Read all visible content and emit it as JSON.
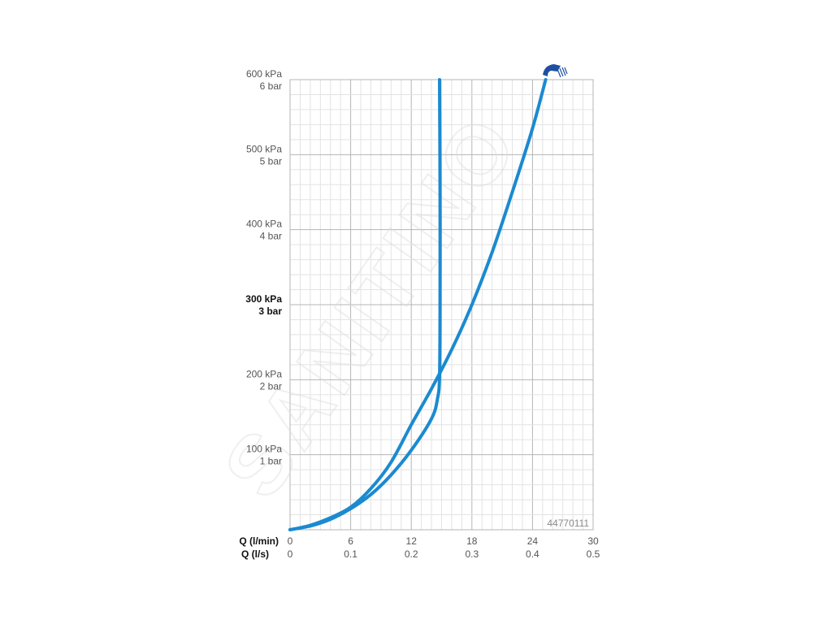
{
  "chart_data": {
    "type": "line",
    "title": "",
    "y_axis": {
      "range_kpa": [
        0,
        600
      ],
      "ticks": [
        {
          "value": 100,
          "kpa": "100 kPa",
          "bar": "1 bar",
          "bold": false
        },
        {
          "value": 200,
          "kpa": "200 kPa",
          "bar": "2 bar",
          "bold": false
        },
        {
          "value": 300,
          "kpa": "300 kPa",
          "bar": "3 bar",
          "bold": true
        },
        {
          "value": 400,
          "kpa": "400 kPa",
          "bar": "4 bar",
          "bold": false
        },
        {
          "value": 500,
          "kpa": "500 kPa",
          "bar": "5 bar",
          "bold": false
        },
        {
          "value": 600,
          "kpa": "600 kPa",
          "bar": "6 bar",
          "bold": false
        }
      ]
    },
    "x_axis": {
      "range_l_min": [
        0,
        30
      ],
      "primary_label": "Q (l/min)",
      "secondary_label": "Q (l/s)",
      "ticks": [
        {
          "value": 0,
          "l_min": "0",
          "l_s": "0"
        },
        {
          "value": 6,
          "l_min": "6",
          "l_s": "0.1"
        },
        {
          "value": 12,
          "l_min": "12",
          "l_s": "0.2"
        },
        {
          "value": 18,
          "l_min": "18",
          "l_s": "0.3"
        },
        {
          "value": 24,
          "l_min": "24",
          "l_s": "0.4"
        },
        {
          "value": 30,
          "l_min": "30",
          "l_s": "0.5"
        }
      ]
    },
    "grid": true,
    "series": [
      {
        "color": "#1b8ad0",
        "points": [
          [
            0,
            0
          ],
          [
            2,
            5
          ],
          [
            4,
            14
          ],
          [
            6,
            28
          ],
          [
            8,
            47
          ],
          [
            10,
            73
          ],
          [
            12,
            106
          ],
          [
            14,
            148
          ],
          [
            14.6,
            175
          ],
          [
            14.8,
            205
          ],
          [
            14.85,
            300
          ],
          [
            14.85,
            450
          ],
          [
            14.8,
            600
          ]
        ]
      },
      {
        "color": "#1b8ad0",
        "points": [
          [
            0,
            0
          ],
          [
            2,
            6
          ],
          [
            4,
            16
          ],
          [
            6,
            30
          ],
          [
            8,
            55
          ],
          [
            10,
            90
          ],
          [
            12,
            140
          ],
          [
            14,
            188
          ],
          [
            16,
            240
          ],
          [
            18,
            300
          ],
          [
            20,
            370
          ],
          [
            22,
            450
          ],
          [
            24,
            535
          ],
          [
            25.3,
            600
          ]
        ]
      }
    ],
    "product_code": "44770111",
    "watermark": "SANITINO",
    "icon": "shower-head-icon",
    "colors": {
      "curve": "#1b8ad0",
      "icon": "#1f4fa0",
      "grid_major": "#b5b5b5",
      "grid_minor": "#e3e3e3"
    }
  }
}
